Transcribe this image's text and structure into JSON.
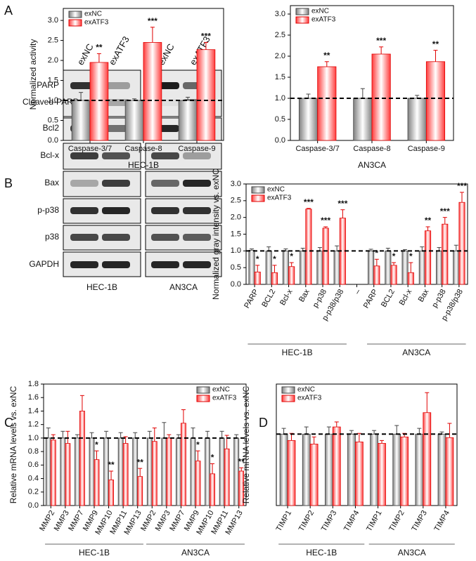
{
  "panels": [
    "A",
    "B",
    "C",
    "D"
  ],
  "blot": {
    "columns": [
      "exNC",
      "exATF3",
      "exNC",
      "exATF3"
    ],
    "rows": [
      "PARP",
      "Cleaved-PARP",
      "Bcl2",
      "Bcl-x",
      "Bax",
      "p-p38",
      "p38",
      "GAPDH"
    ],
    "cell_lines": [
      "HEC-1B",
      "AN3CA"
    ]
  },
  "chart_data": [
    {
      "type": "bar",
      "ylabel": "Normalized activity",
      "groups": [
        "HEC-1B"
      ],
      "categories": [
        "Caspase-3/7",
        "Caspase-8",
        "Caspase-9"
      ],
      "series": [
        {
          "name": "exNC",
          "color": "#808080",
          "values": [
            1.0,
            1.0,
            1.0
          ],
          "errors": [
            0.2,
            0.04,
            0.08
          ]
        },
        {
          "name": "exATF3",
          "color": "#ff3b3b",
          "values": [
            1.95,
            2.45,
            2.27
          ],
          "errors": [
            0.22,
            0.38,
            0.18
          ],
          "annotations": [
            "**",
            "***",
            "***"
          ]
        }
      ],
      "ylim": [
        0,
        3.3
      ],
      "yticks": [
        {
          "value": 0,
          "label": "0.0"
        },
        0.5,
        {
          "value": 1,
          "label": "1.0"
        },
        1.5,
        {
          "value": 2,
          "label": "2.0"
        },
        2.5,
        {
          "value": 3,
          "label": "3.0"
        }
      ],
      "reference_line": 1,
      "legend": "upper left"
    },
    {
      "type": "bar",
      "groups": [
        "AN3CA"
      ],
      "categories": [
        "Caspase-3/7",
        "Caspase-8",
        "Caspase-9"
      ],
      "series": [
        {
          "name": "exNC",
          "color": "#808080",
          "values": [
            1.0,
            1.0,
            1.0
          ],
          "errors": [
            0.1,
            0.23,
            0.07
          ]
        },
        {
          "name": "exATF3",
          "color": "#ff3b3b",
          "values": [
            1.75,
            2.05,
            1.87
          ],
          "errors": [
            0.12,
            0.17,
            0.27
          ],
          "annotations": [
            "**",
            "***",
            "**"
          ]
        }
      ],
      "ylim": [
        0,
        3.2
      ],
      "yticks": [
        {
          "value": 0,
          "label": "0.0"
        },
        0.5,
        {
          "value": 1,
          "label": "1.0"
        },
        1.5,
        {
          "value": 2,
          "label": "2.0"
        },
        2.5,
        {
          "value": 3,
          "label": "3.0"
        }
      ],
      "reference_line": 1,
      "legend": "upper left"
    },
    {
      "type": "bar",
      "ylabel": "Normalized gray intensity vs. exNC",
      "groups": [
        "HEC-1B",
        "AN3CA"
      ],
      "categories": [
        "PARP",
        "BCL2",
        "Bcl-x",
        "Bax",
        "p-p38",
        "p-p38/p38",
        "–",
        "PARP",
        "BCL2",
        "Bcl-x",
        "Bax",
        "p-p38",
        "p-p38/p38"
      ],
      "series": [
        {
          "name": "exNC",
          "color": "#808080",
          "values": [
            1.02,
            1.0,
            1.0,
            1.0,
            1.0,
            1.0,
            null,
            1.0,
            1.0,
            1.0,
            1.0,
            1.0,
            1.0
          ],
          "errors": [
            0.04,
            0.12,
            0.06,
            0.08,
            0.1,
            0.15,
            null,
            0.05,
            0.08,
            0.04,
            0.12,
            0.1,
            0.17
          ]
        },
        {
          "name": "exATF3",
          "color": "#ff3b3b",
          "values": [
            0.37,
            0.35,
            0.53,
            2.25,
            1.68,
            1.98,
            null,
            0.55,
            0.57,
            0.35,
            1.6,
            1.8,
            2.45
          ],
          "errors": [
            0.2,
            0.22,
            0.12,
            0.02,
            0.04,
            0.25,
            null,
            0.2,
            0.08,
            0.3,
            0.12,
            0.2,
            0.3
          ],
          "annotations": [
            "*",
            "*",
            "*",
            "***",
            "***",
            "***",
            null,
            "*",
            "*",
            "*",
            "**",
            "***",
            "***"
          ]
        }
      ],
      "ylim": [
        0,
        3.0
      ],
      "yticks": [
        {
          "value": 0,
          "label": "0.0"
        },
        0.5,
        {
          "value": 1,
          "label": "1.0"
        },
        1.5,
        {
          "value": 2,
          "label": "2.0"
        },
        2.5,
        {
          "value": 3,
          "label": "3.0"
        }
      ],
      "reference_line": 1,
      "legend": "upper left"
    },
    {
      "type": "bar",
      "ylabel": "Relative mRNA levels vs. exNC",
      "groups": [
        "HEC-1B",
        "AN3CA"
      ],
      "categories": [
        "MMP2",
        "MMP3",
        "MMP7",
        "MMP9",
        "MMP10",
        "MMP11",
        "MMP13",
        "MMP2",
        "MMP3",
        "MMP7",
        "MMP9",
        "MMP10",
        "MMP11",
        "MMP13"
      ],
      "series": [
        {
          "name": "exNC",
          "color": "#808080",
          "values": [
            1,
            1,
            1,
            1,
            1,
            1,
            1,
            1,
            1,
            1,
            1,
            1,
            1,
            1
          ],
          "errors": [
            0.15,
            0.1,
            0.05,
            0.08,
            0.1,
            0.08,
            0.08,
            0.1,
            0.23,
            0.05,
            0.15,
            0.1,
            0.1,
            0.05
          ]
        },
        {
          "name": "exATF3",
          "color": "#ff3b3b",
          "values": [
            0.97,
            0.92,
            1.4,
            0.68,
            0.38,
            0.92,
            0.43,
            0.95,
            1.0,
            1.22,
            0.66,
            0.47,
            0.84,
            0.51
          ],
          "errors": [
            0.08,
            0.18,
            0.23,
            0.13,
            0.13,
            0.1,
            0.12,
            0.2,
            0.05,
            0.2,
            0.15,
            0.15,
            0.2,
            0.05
          ],
          "annotations": [
            null,
            null,
            null,
            "*",
            "**",
            null,
            "**",
            null,
            null,
            null,
            "*",
            "*",
            null,
            "**"
          ]
        }
      ],
      "ylim": [
        0,
        1.8
      ],
      "yticks": [
        {
          "value": 0,
          "label": "0.0"
        },
        0.2,
        0.4,
        0.6,
        0.8,
        {
          "value": 1,
          "label": "1.0"
        },
        1.2,
        1.4,
        1.6,
        1.8
      ],
      "reference_line": 1,
      "legend": "upper right"
    },
    {
      "type": "bar",
      "ylabel": "Relative mRNA levels vs. exNC",
      "groups": [
        "HEC-1B",
        "AN3CA"
      ],
      "categories": [
        "TIMP1",
        "TIMP2",
        "TIMP3",
        "TIMP4",
        "TIMP1",
        "TIMP2",
        "TIMP3",
        "TIMP4"
      ],
      "series": [
        {
          "name": "exNC",
          "color": "#808080",
          "values": [
            1,
            1,
            1,
            1,
            1,
            1,
            1,
            1
          ],
          "errors": [
            0.08,
            0.1,
            0.1,
            0.05,
            0.05,
            0.12,
            0.08,
            0.03
          ]
        },
        {
          "name": "exATF3",
          "color": "#ff3b3b",
          "values": [
            0.91,
            0.86,
            1.1,
            0.89,
            0.87,
            0.96,
            1.3,
            0.95
          ],
          "errors": [
            0.1,
            0.1,
            0.07,
            0.12,
            0.04,
            0.05,
            0.28,
            0.2
          ]
        }
      ],
      "ylim": [
        0,
        1.7
      ],
      "reference_line": 1,
      "legend": "upper left"
    }
  ]
}
